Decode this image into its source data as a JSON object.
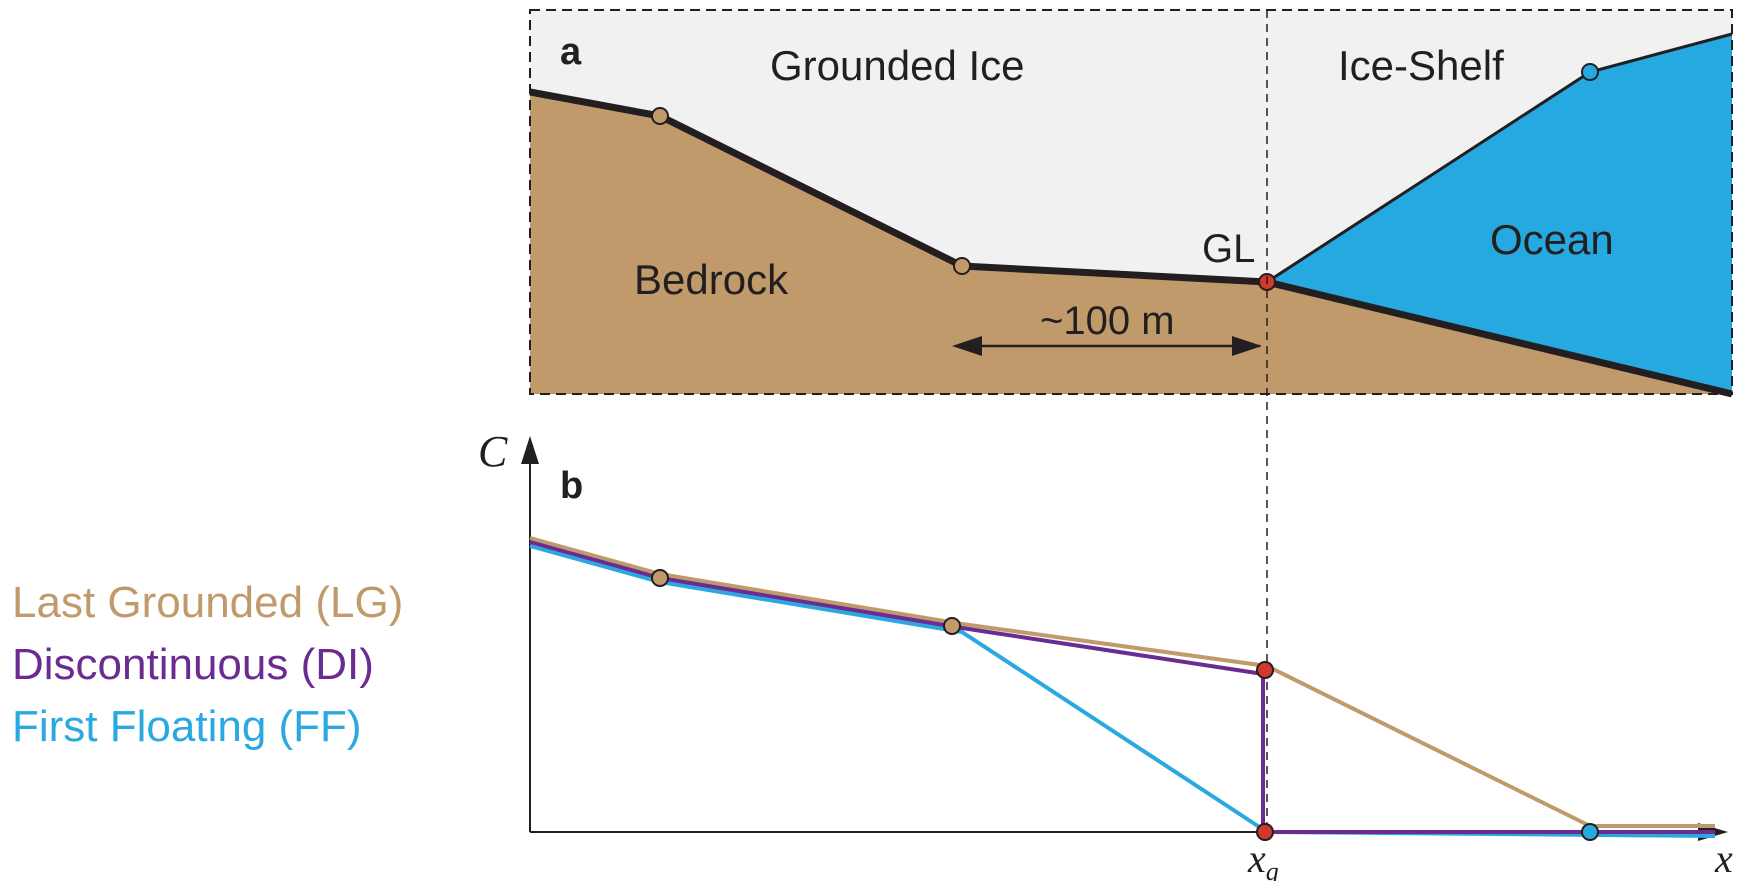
{
  "panel_a": {
    "panel_label": "a",
    "grounded_ice_label": "Grounded Ice",
    "ice_shelf_label": "Ice-Shelf",
    "bedrock_label": "Bedrock",
    "ocean_label": "Ocean",
    "gl_label": "GL",
    "distance_label": "~100 m"
  },
  "panel_b": {
    "panel_label": "b",
    "y_axis_label": "C",
    "x_axis_label": "x",
    "xg_label": "x",
    "xg_subscript": "g"
  },
  "legend": [
    {
      "label": "Last Grounded (LG)",
      "color": "#c19a6b"
    },
    {
      "label": "Discontinuous (DI)",
      "color": "#6a2c91"
    },
    {
      "label": "First Floating (FF)",
      "color": "#29a9e0"
    }
  ],
  "colors": {
    "bedrock": "#c19a6b",
    "ice": "#f0f1f0",
    "ocean": "#25a9e0",
    "grounding_line_node": "#d0392b",
    "lg": "#c19a6b",
    "di": "#6a2c91",
    "ff": "#29a9e0"
  }
}
